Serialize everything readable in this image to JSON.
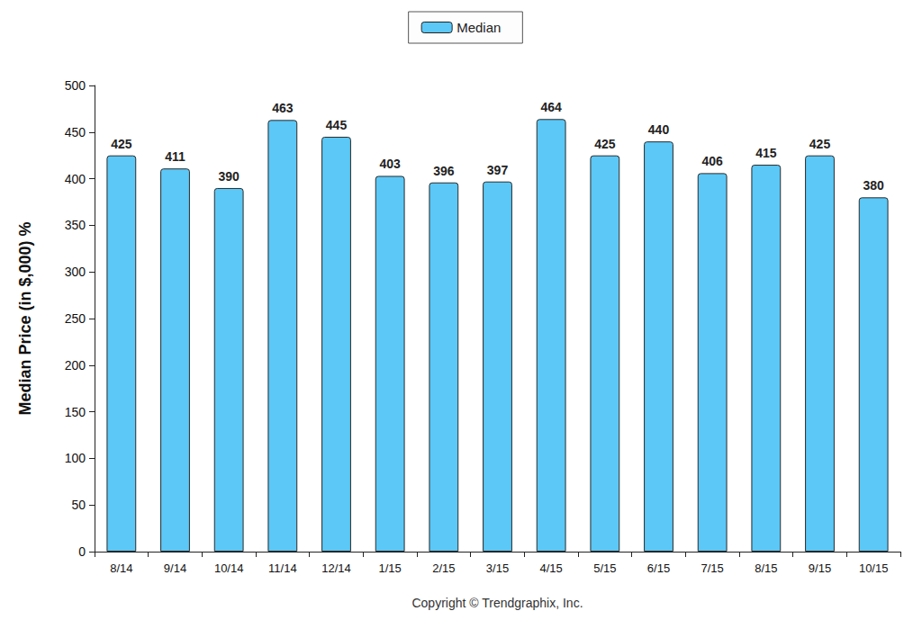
{
  "chart_data": {
    "type": "bar",
    "ylabel": "Median Price (in $,000) %",
    "xlabel": "Copyright © Trendgraphix, Inc.",
    "categories": [
      "8/14",
      "9/14",
      "10/14",
      "11/14",
      "12/14",
      "1/15",
      "2/15",
      "3/15",
      "4/15",
      "5/15",
      "6/15",
      "7/15",
      "8/15",
      "9/15",
      "10/15"
    ],
    "series": [
      {
        "name": "Median",
        "color": "#5bc8f7",
        "values": [
          425,
          411,
          390,
          463,
          445,
          403,
          396,
          397,
          464,
          425,
          440,
          406,
          415,
          425,
          380
        ]
      }
    ],
    "ylim": [
      0,
      500
    ],
    "yticks": [
      0,
      50,
      100,
      150,
      200,
      250,
      300,
      350,
      400,
      450,
      500
    ],
    "grid": false,
    "legend": "top",
    "data_labels": true
  }
}
